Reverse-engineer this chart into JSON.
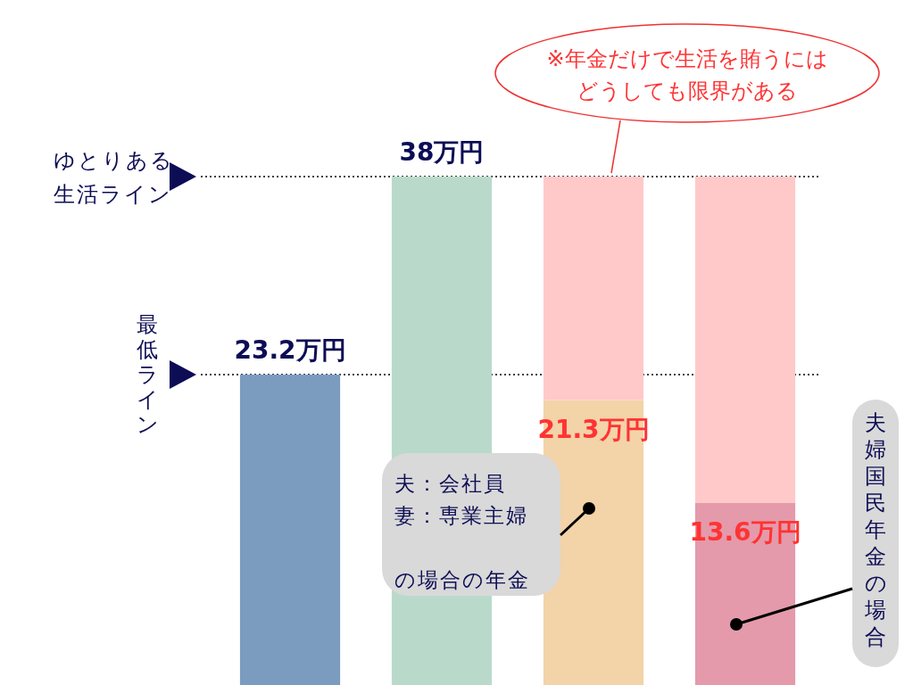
{
  "chart_data": {
    "type": "bar",
    "stacked": true,
    "categories": [
      null,
      null,
      null,
      null
    ],
    "series": [
      {
        "colors": [
          "#7b9bbf",
          "#b9dacb",
          "#f3d3a8",
          "#e49aab"
        ],
        "values": [
          23.2,
          38,
          21.3,
          13.6
        ],
        "value_labels": [
          "23.2万円",
          "38万円",
          "21.3万円",
          "13.6万円"
        ]
      },
      {
        "color": "#ffc9c9",
        "values": [
          null,
          null,
          16.7,
          24.4
        ]
      }
    ],
    "ref_lines": [
      {
        "axis": "y",
        "value": 38,
        "label": "ゆとりある生活ライン",
        "line_style": "dotted",
        "color": "#000000"
      },
      {
        "axis": "y",
        "value": 23.2,
        "label": "最低ライン",
        "line_style": "dotted",
        "color": "#000000"
      }
    ],
    "annotations": [
      "※年金だけで生活を賄うにはどうしても限界がある",
      "夫：会社員",
      "妻：専業主婦",
      "の場合の年金",
      "夫婦国民年金の場合"
    ]
  }
}
